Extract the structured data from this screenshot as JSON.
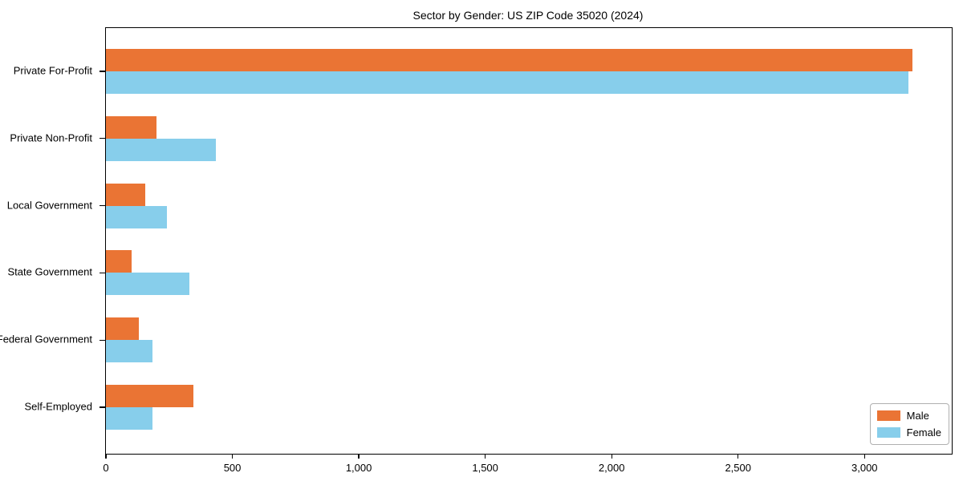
{
  "chart_data": {
    "type": "bar",
    "orientation": "horizontal",
    "title": "Sector by Gender: US ZIP Code 35020 (2024)",
    "xlabel": "",
    "ylabel": "",
    "categories": [
      "Private For-Profit",
      "Private Non-Profit",
      "Local Government",
      "State Government",
      "Federal Government",
      "Self-Employed"
    ],
    "series": [
      {
        "name": "Male",
        "color": "#ea7434",
        "values": [
          3190,
          200,
          155,
          100,
          130,
          345
        ]
      },
      {
        "name": "Female",
        "color": "#87ceeb",
        "values": [
          3175,
          435,
          240,
          330,
          185,
          185
        ]
      }
    ],
    "xlim": [
      0,
      3345
    ],
    "xticks": [
      0,
      500,
      1000,
      1500,
      2000,
      2500,
      3000
    ],
    "xtick_labels": [
      "0",
      "500",
      "1,000",
      "1,500",
      "2,000",
      "2,500",
      "3,000"
    ],
    "grid": false,
    "legend_position": "lower right",
    "colors": {
      "axis": "#000000",
      "legend_border": "#b0b0b0",
      "background": "#ffffff"
    }
  }
}
